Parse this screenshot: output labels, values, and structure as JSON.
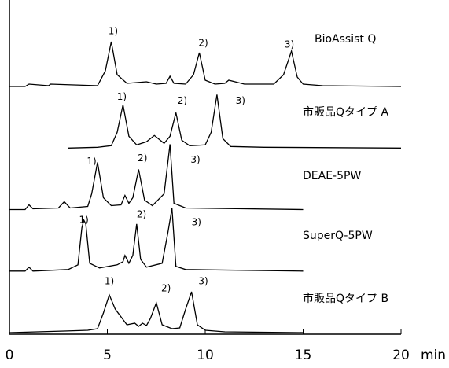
{
  "chart_data": {
    "type": "line",
    "color": "#000000",
    "xlabel": "min",
    "xlim": [
      0,
      20
    ],
    "xticks": [
      0,
      5,
      10,
      15,
      20
    ],
    "series": [
      {
        "name": "BioAssist Q",
        "x": [
          0,
          0.8,
          1,
          2,
          2.1,
          4.5,
          4.9,
          5.2,
          5.5,
          6,
          7,
          7.5,
          8,
          8.2,
          8.4,
          9,
          9.4,
          9.7,
          10,
          10.5,
          11,
          11.2,
          12,
          13.5,
          14,
          14.4,
          14.7,
          15,
          16,
          20
        ],
        "values": [
          0,
          0,
          3,
          1,
          3,
          1,
          20,
          57,
          15,
          4,
          6,
          3,
          4,
          13,
          4,
          3,
          15,
          43,
          8,
          3,
          4,
          8,
          3,
          3,
          15,
          45,
          12,
          3,
          1,
          0
        ],
        "peak_labels": [
          {
            "text": "1)",
            "x": 5.3,
            "y": 70
          },
          {
            "text": "2)",
            "x": 9.9,
            "y": 55
          },
          {
            "text": "3)",
            "x": 14.3,
            "y": 53
          }
        ]
      },
      {
        "name": "市販品Qタイプ A",
        "x": [
          3,
          4.5,
          5.2,
          5.5,
          5.8,
          6.1,
          6.5,
          7,
          7.4,
          7.6,
          7.9,
          8.2,
          8.5,
          8.8,
          9.2,
          10,
          10.3,
          10.6,
          10.9,
          11.3,
          13,
          20
        ],
        "values": [
          0,
          1,
          3,
          20,
          55,
          15,
          4,
          8,
          16,
          12,
          6,
          15,
          45,
          10,
          3,
          4,
          20,
          68,
          12,
          2,
          1,
          0
        ],
        "peak_labels": [
          {
            "text": "1)",
            "x": 5.74,
            "y": 65
          },
          {
            "text": "2)",
            "x": 8.83,
            "y": 60
          },
          {
            "text": "3)",
            "x": 11.8,
            "y": 60
          }
        ]
      },
      {
        "name": "DEAE-5PW",
        "x": [
          0,
          0.8,
          1,
          1.2,
          2.5,
          2.8,
          3.1,
          4,
          4.2,
          4.5,
          4.8,
          5.2,
          5.7,
          5.9,
          6.1,
          6.3,
          6.6,
          6.9,
          7.3,
          7.9,
          8.2,
          8.4,
          9,
          15
        ],
        "values": [
          0,
          0,
          6,
          1,
          2,
          10,
          2,
          4,
          20,
          60,
          15,
          5,
          6,
          18,
          8,
          15,
          51,
          12,
          5,
          20,
          83,
          8,
          2,
          0
        ],
        "peak_labels": [
          {
            "text": "1)",
            "x": 4.2,
            "y": 61
          },
          {
            "text": "2)",
            "x": 6.8,
            "y": 65
          },
          {
            "text": "3)",
            "x": 9.5,
            "y": 63
          }
        ]
      },
      {
        "name": "SuperQ-5PW",
        "x": [
          0,
          0.8,
          1,
          1.2,
          3,
          3.5,
          3.7,
          3.8,
          3.9,
          4.1,
          4.6,
          5.5,
          5.8,
          5.9,
          6.1,
          6.3,
          6.5,
          6.7,
          7,
          7.8,
          8.1,
          8.3,
          8.5,
          9,
          15
        ],
        "values": [
          0,
          0,
          5,
          0,
          2,
          8,
          55,
          65,
          60,
          10,
          4,
          8,
          12,
          20,
          10,
          20,
          60,
          15,
          5,
          10,
          50,
          80,
          6,
          2,
          0
        ],
        "peak_labels": [
          {
            "text": "1)",
            "x": 3.8,
            "y": 65
          },
          {
            "text": "2)",
            "x": 6.75,
            "y": 72
          },
          {
            "text": "3)",
            "x": 9.55,
            "y": 62
          }
        ]
      },
      {
        "name": "市販品Qタイプ B",
        "x": [
          0,
          2.8,
          4,
          4.5,
          4.8,
          5.1,
          5.4,
          6,
          6.4,
          6.6,
          6.8,
          7,
          7.2,
          7.5,
          7.8,
          8.3,
          8.7,
          9,
          9.3,
          9.6,
          10,
          11,
          15
        ],
        "values": [
          0,
          2,
          3,
          5,
          25,
          48,
          30,
          10,
          12,
          8,
          12,
          9,
          18,
          38,
          10,
          5,
          6,
          30,
          52,
          10,
          3,
          1,
          0
        ],
        "peak_labels": [
          {
            "text": "1)",
            "x": 5.1,
            "y": 65
          },
          {
            "text": "2)",
            "x": 8.0,
            "y": 56
          },
          {
            "text": "3)",
            "x": 9.9,
            "y": 65
          }
        ]
      }
    ]
  }
}
